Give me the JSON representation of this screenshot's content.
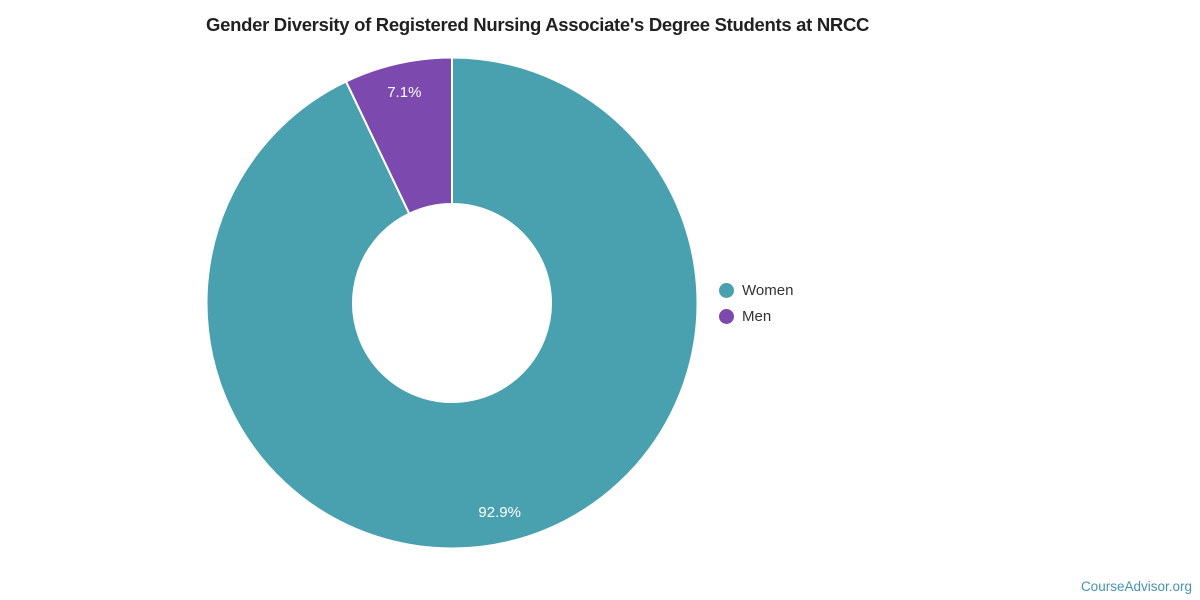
{
  "title": "Gender Diversity of Registered Nursing Associate's Degree Students at NRCC",
  "watermark": "CourseAdvisor.org",
  "chart_data": {
    "type": "pie",
    "donut": true,
    "title": "Gender Diversity of Registered Nursing Associate's Degree Students at NRCC",
    "total": 100,
    "start_angle_deg": 0,
    "direction": "clockwise",
    "legend_position": "right",
    "border_color": "#ffffff",
    "label_color": "#ffffff",
    "background_color": "#ffffff",
    "categories": [
      "Women",
      "Men"
    ],
    "values": [
      92.9,
      7.1
    ],
    "series": [
      {
        "name": "Women",
        "value": 92.9,
        "label": "92.9%",
        "color": "#49A1B0"
      },
      {
        "name": "Men",
        "value": 7.1,
        "label": "7.1%",
        "color": "#7C4AAE"
      }
    ]
  }
}
